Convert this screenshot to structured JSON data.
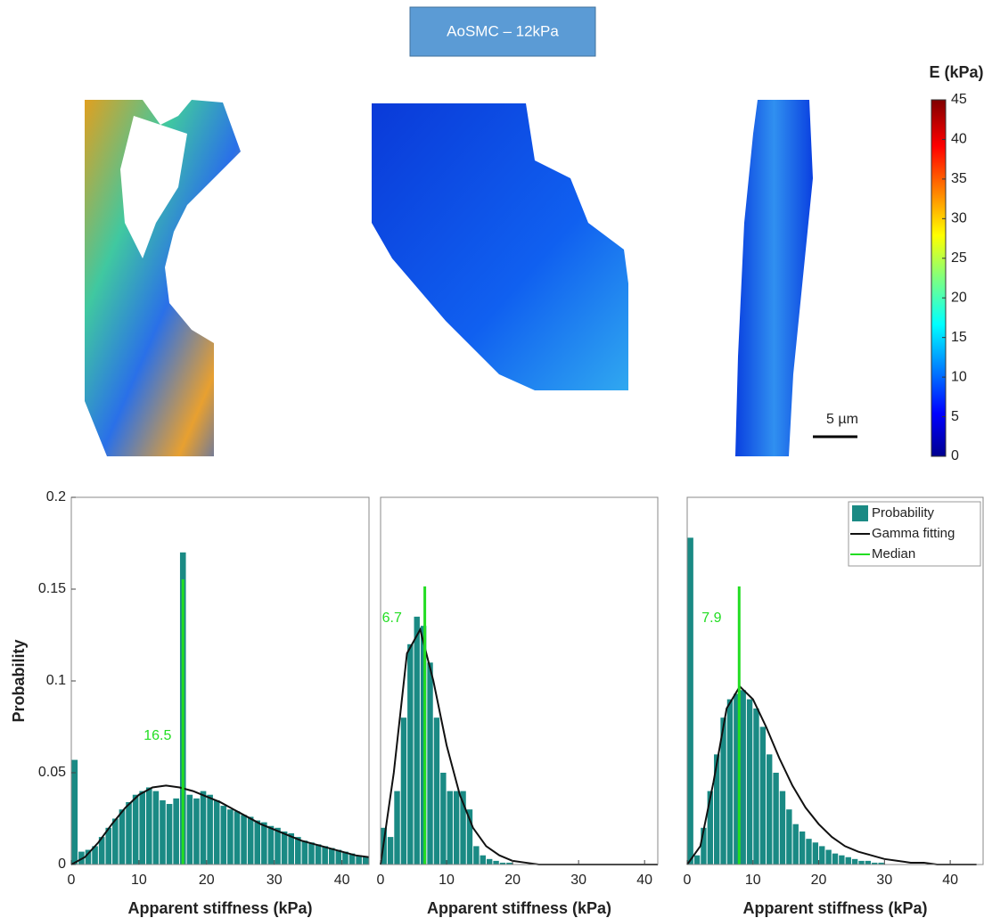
{
  "header": {
    "title": "AoSMC – 12kPa"
  },
  "scale_bar": {
    "label": "5 µm"
  },
  "chart_data": [
    {
      "type": "histogram",
      "xlabel": "Apparent stiffness (kPa)",
      "ylabel": "Probability",
      "bins": [
        0,
        1,
        2,
        3,
        4,
        5,
        6,
        7,
        8,
        9,
        10,
        11,
        12,
        13,
        14,
        15,
        16,
        17,
        18,
        19,
        20,
        21,
        22,
        23,
        24,
        25,
        26,
        27,
        28,
        29,
        30,
        31,
        32,
        33,
        34,
        35,
        36,
        37,
        38,
        39,
        40,
        41,
        42,
        43,
        44
      ],
      "values": [
        0.057,
        0.007,
        0.008,
        0.01,
        0.015,
        0.02,
        0.025,
        0.03,
        0.034,
        0.038,
        0.04,
        0.042,
        0.04,
        0.035,
        0.033,
        0.036,
        0.17,
        0.038,
        0.036,
        0.04,
        0.038,
        0.035,
        0.032,
        0.03,
        0.029,
        0.027,
        0.026,
        0.024,
        0.023,
        0.021,
        0.02,
        0.018,
        0.017,
        0.015,
        0.013,
        0.012,
        0.011,
        0.01,
        0.009,
        0.008,
        0.007,
        0.006,
        0.005,
        0.004
      ],
      "color": "#1a8a84",
      "fit": {
        "color": "#111111",
        "x": [
          0,
          2,
          4,
          6,
          8,
          10,
          12,
          14,
          16,
          18,
          20,
          22,
          24,
          26,
          28,
          30,
          32,
          34,
          36,
          38,
          40,
          42,
          44
        ],
        "values": [
          0,
          0.004,
          0.012,
          0.022,
          0.031,
          0.038,
          0.042,
          0.043,
          0.042,
          0.04,
          0.037,
          0.034,
          0.03,
          0.026,
          0.022,
          0.019,
          0.016,
          0.013,
          0.011,
          0.009,
          0.007,
          0.005,
          0.004
        ]
      },
      "median": {
        "color": "#22dd22",
        "value": 16.5
      },
      "xlim": [
        0,
        44
      ],
      "xticks": [
        0,
        10,
        20,
        30,
        40
      ],
      "ylim": [
        0,
        0.2
      ],
      "yticks": [
        0,
        0.05,
        0.1,
        0.15,
        0.2
      ]
    },
    {
      "type": "histogram",
      "xlabel": "Apparent stiffness (kPa)",
      "bins": [
        0,
        1,
        2,
        3,
        4,
        5,
        6,
        7,
        8,
        9,
        10,
        11,
        12,
        13,
        14,
        15,
        16,
        17,
        18,
        19,
        20,
        21,
        22,
        23,
        24,
        25,
        26,
        27,
        28,
        29,
        30,
        31,
        32,
        33,
        34,
        35,
        36,
        37,
        38,
        39,
        40,
        41,
        42
      ],
      "values": [
        0.02,
        0.015,
        0.04,
        0.08,
        0.12,
        0.135,
        0.13,
        0.11,
        0.08,
        0.05,
        0.04,
        0.04,
        0.04,
        0.03,
        0.01,
        0.005,
        0.003,
        0.002,
        0.001,
        0.001,
        0,
        0,
        0,
        0,
        0,
        0,
        0,
        0,
        0,
        0,
        0,
        0,
        0,
        0,
        0,
        0,
        0,
        0,
        0,
        0,
        0,
        0
      ],
      "color": "#1a8a84",
      "fit": {
        "color": "#111111",
        "x": [
          0,
          2,
          4,
          6,
          8,
          10,
          12,
          14,
          16,
          18,
          20,
          22,
          24,
          26,
          28,
          30,
          32,
          34,
          36,
          38,
          40,
          42
        ],
        "values": [
          0,
          0.05,
          0.115,
          0.128,
          0.1,
          0.065,
          0.038,
          0.02,
          0.01,
          0.005,
          0.002,
          0.001,
          0,
          0,
          0,
          0,
          0,
          0,
          0,
          0,
          0,
          0
        ]
      },
      "median": {
        "color": "#22dd22",
        "value": 6.7
      },
      "xlim": [
        0,
        42
      ],
      "xticks": [
        0,
        10,
        20,
        30,
        40
      ],
      "ylim": [
        0,
        0.2
      ]
    },
    {
      "type": "histogram",
      "xlabel": "Apparent stiffness (kPa)",
      "name": "Probability",
      "bins": [
        0,
        1,
        2,
        3,
        4,
        5,
        6,
        7,
        8,
        9,
        10,
        11,
        12,
        13,
        14,
        15,
        16,
        17,
        18,
        19,
        20,
        21,
        22,
        23,
        24,
        25,
        26,
        27,
        28,
        29,
        30,
        31,
        32,
        33,
        34,
        35,
        36,
        37,
        38,
        39,
        40,
        41,
        42,
        43,
        44,
        45
      ],
      "values": [
        0.178,
        0.005,
        0.02,
        0.04,
        0.06,
        0.08,
        0.09,
        0.093,
        0.095,
        0.09,
        0.085,
        0.075,
        0.06,
        0.05,
        0.04,
        0.03,
        0.022,
        0.018,
        0.014,
        0.012,
        0.01,
        0.008,
        0.006,
        0.005,
        0.004,
        0.003,
        0.002,
        0.002,
        0.001,
        0.001,
        0,
        0,
        0,
        0,
        0,
        0,
        0,
        0,
        0,
        0,
        0,
        0,
        0,
        0,
        0
      ],
      "color": "#1a8a84",
      "fit": {
        "name": "Gamma fitting",
        "color": "#111111",
        "x": [
          0,
          2,
          4,
          6,
          8,
          10,
          12,
          14,
          16,
          18,
          20,
          22,
          24,
          26,
          28,
          30,
          32,
          34,
          36,
          38,
          40,
          42,
          44
        ],
        "values": [
          0,
          0.01,
          0.045,
          0.085,
          0.097,
          0.09,
          0.075,
          0.058,
          0.043,
          0.031,
          0.022,
          0.015,
          0.01,
          0.007,
          0.005,
          0.003,
          0.002,
          0.001,
          0.001,
          0,
          0,
          0,
          0
        ]
      },
      "median": {
        "name": "Median",
        "color": "#22dd22",
        "value": 7.9
      },
      "xlim": [
        0,
        45
      ],
      "xticks": [
        0,
        10,
        20,
        30,
        40
      ],
      "ylim": [
        0,
        0.2
      ],
      "legend": "upper right"
    },
    {
      "type": "colorbar",
      "title": "E (kPa)",
      "ylim": [
        0,
        45
      ],
      "yticks": [
        0,
        5,
        10,
        15,
        20,
        25,
        30,
        35,
        40,
        45
      ]
    }
  ]
}
